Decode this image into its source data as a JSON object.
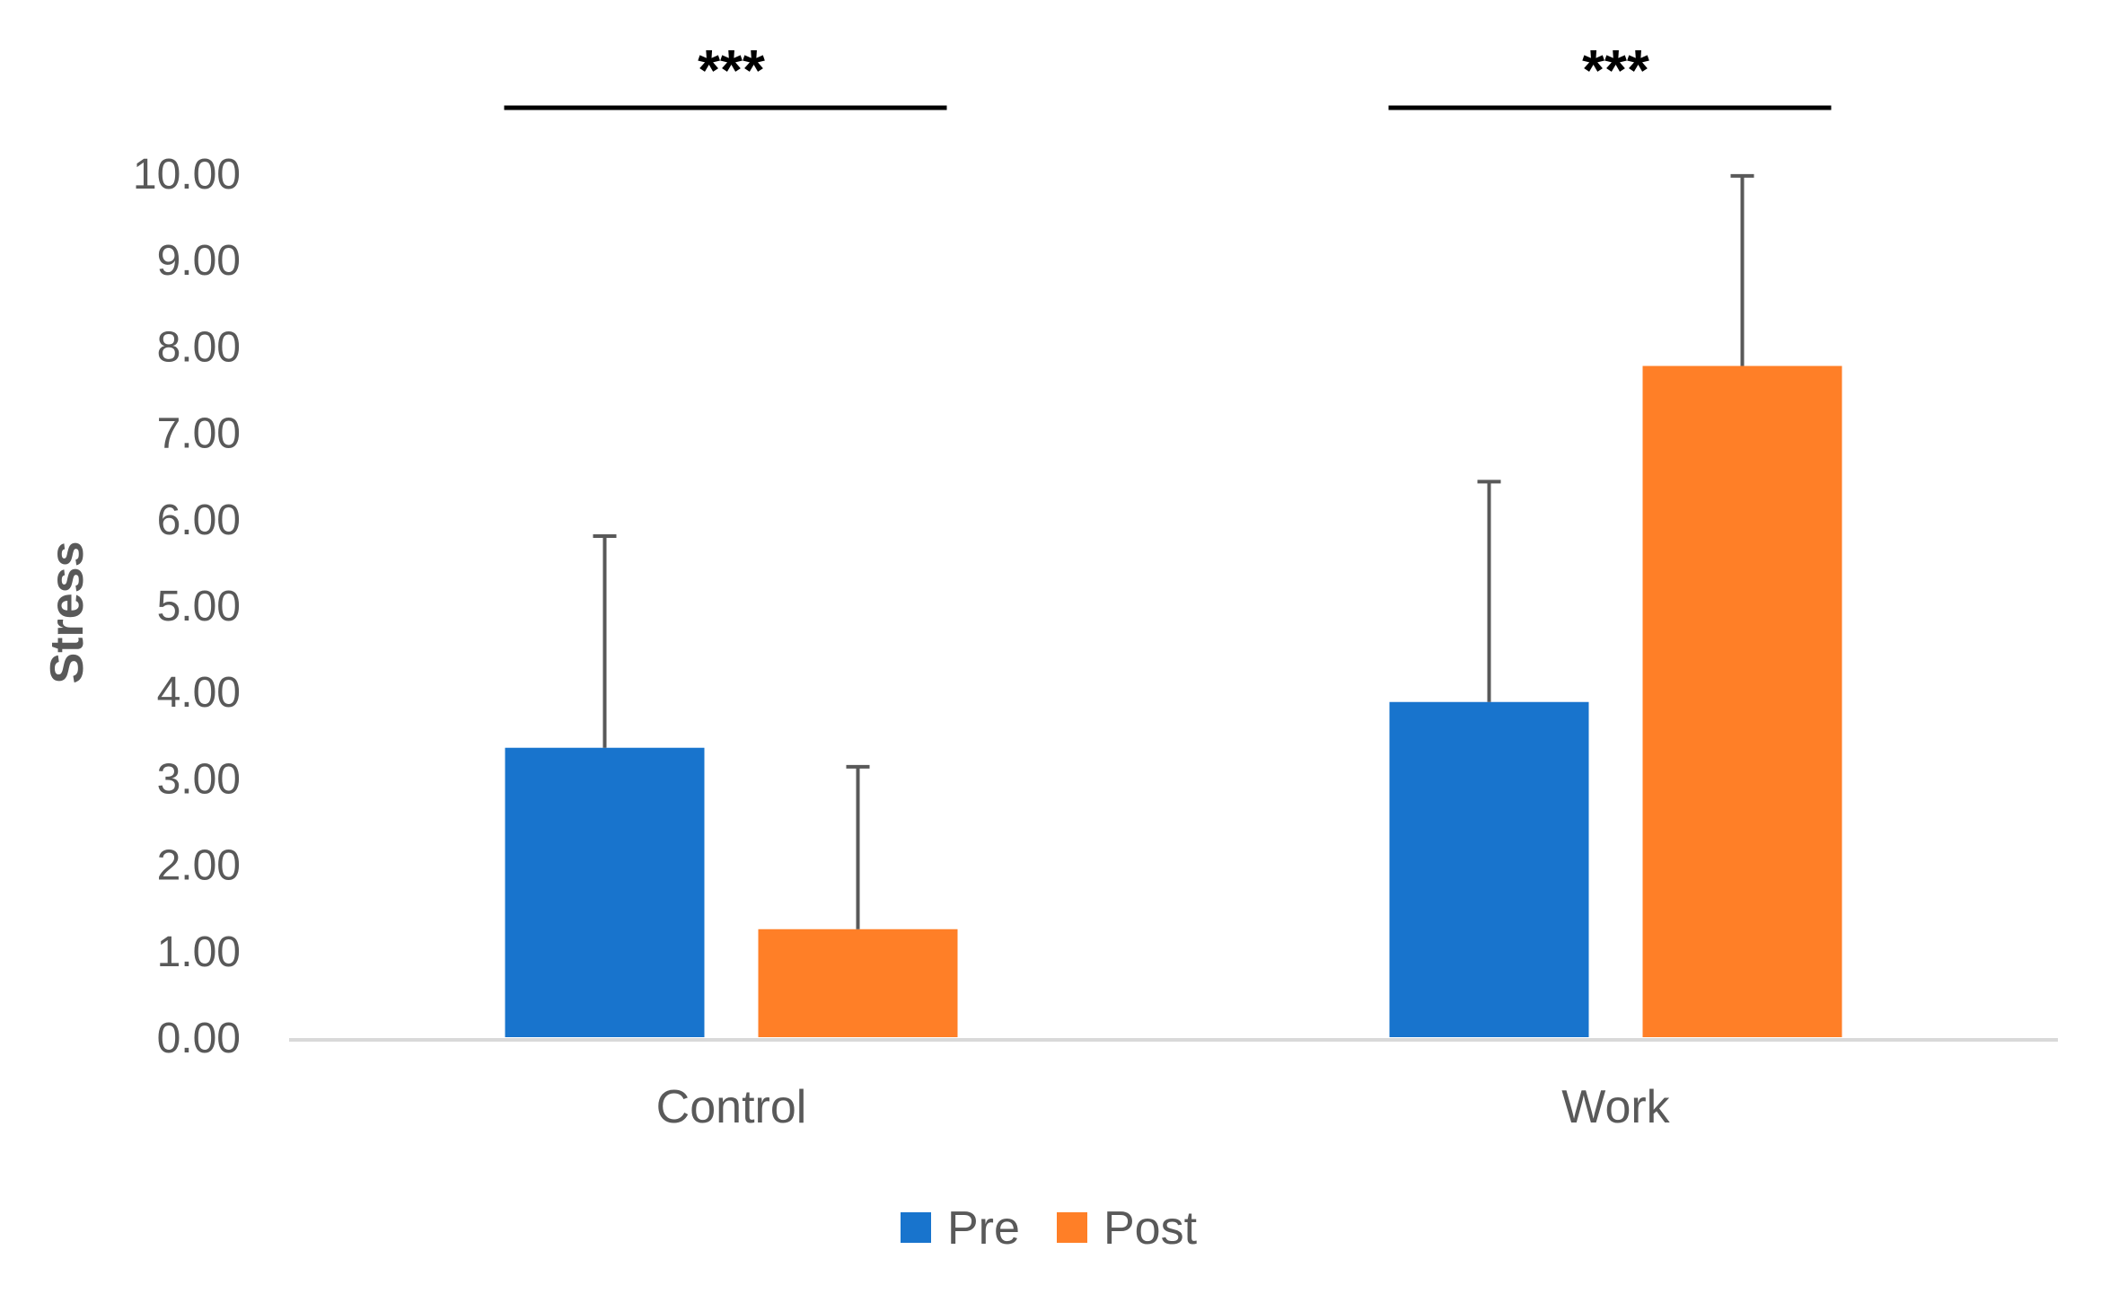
{
  "chart_data": {
    "type": "bar",
    "categories": [
      "Control",
      "Work"
    ],
    "series": [
      {
        "name": "Pre",
        "values": [
          3.35,
          3.88
        ],
        "error": [
          2.45,
          2.55
        ],
        "color": "#1874CD"
      },
      {
        "name": "Post",
        "values": [
          1.25,
          7.77
        ],
        "error": [
          1.88,
          2.2
        ],
        "color": "#FF7F27"
      }
    ],
    "xlabel": "",
    "ylabel": "Stress",
    "ylim": [
      0,
      10
    ],
    "yticks": [
      "0.00",
      "1.00",
      "2.00",
      "3.00",
      "4.00",
      "5.00",
      "6.00",
      "7.00",
      "8.00",
      "9.00",
      "10.00"
    ],
    "grid": false,
    "legend": "bottom",
    "annotations": [
      {
        "category": "Control",
        "text": "***"
      },
      {
        "category": "Work",
        "text": "***"
      }
    ]
  }
}
